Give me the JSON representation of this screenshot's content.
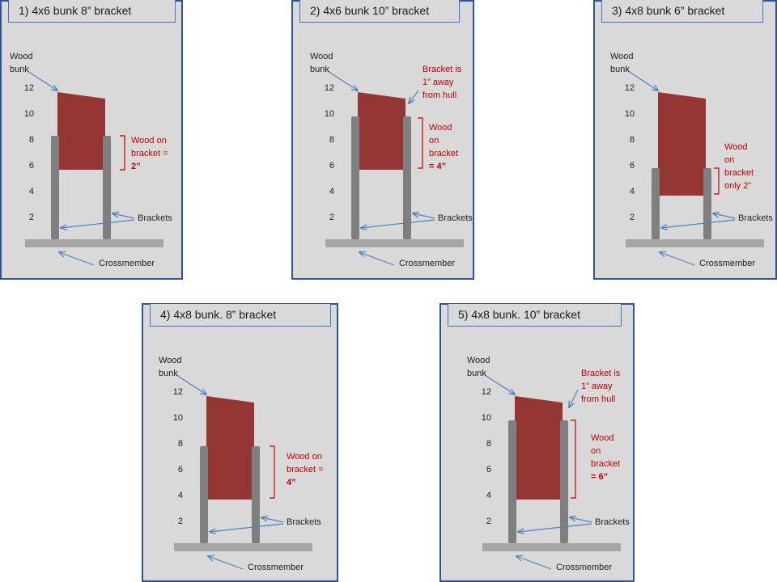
{
  "panels": [
    {
      "title": "1) 4x6 bunk 8” bracket",
      "wood_label_1": "Wood",
      "wood_label_2": "bunk",
      "ticks": [
        "12",
        "10",
        "8",
        "6",
        "4",
        "2"
      ],
      "brackets_label": "Brackets",
      "crossmember_label": "Crossmember",
      "note_lines": [
        "Wood on",
        "bracket =",
        "2”"
      ],
      "note_bold_last": true,
      "gap_note_lines": []
    },
    {
      "title": "2) 4x6 bunk 10” bracket",
      "wood_label_1": "Wood",
      "wood_label_2": "bunk",
      "ticks": [
        "12",
        "10",
        "8",
        "6",
        "4",
        "2"
      ],
      "brackets_label": "Brackets",
      "crossmember_label": "Crossmember",
      "note_lines": [
        "Wood",
        "on",
        "bracket",
        "= 4”"
      ],
      "note_bold_last": true,
      "gap_note_lines": [
        "Bracket is",
        "1” away",
        "from hull"
      ]
    },
    {
      "title": "3) 4x8 bunk 6” bracket",
      "wood_label_1": "Wood",
      "wood_label_2": "bunk",
      "ticks": [
        "12",
        "10",
        "8",
        "6",
        "4",
        "2"
      ],
      "brackets_label": "Brackets",
      "crossmember_label": "Crossmember",
      "note_lines": [
        "Wood",
        "on",
        "bracket",
        "only 2”"
      ],
      "note_bold_last": false,
      "gap_note_lines": []
    },
    {
      "title": "4) 4x8 bunk. 8” bracket",
      "wood_label_1": "Wood",
      "wood_label_2": "bunk",
      "ticks": [
        "12",
        "10",
        "8",
        "6",
        "4",
        "2"
      ],
      "brackets_label": "Brackets",
      "crossmember_label": "Crossmember",
      "note_lines": [
        "Wood on",
        "bracket =",
        "4”"
      ],
      "note_bold_last": true,
      "gap_note_lines": []
    },
    {
      "title": "5) 4x8 bunk. 10” bracket",
      "wood_label_1": "Wood",
      "wood_label_2": "bunk",
      "ticks": [
        "12",
        "10",
        "8",
        "6",
        "4",
        "2"
      ],
      "brackets_label": "Brackets",
      "crossmember_label": "Crossmember",
      "note_lines": [
        "Wood",
        "on",
        "bracket",
        "= 6”"
      ],
      "note_bold_last": true,
      "gap_note_lines": [
        "Bracket is",
        "1” away",
        "from hull"
      ]
    }
  ],
  "colors": {
    "panel_bg": "#d9d9d9",
    "border": "#2f5496",
    "bunk": "#943634",
    "bracket": "#7f7f7f",
    "crossmember": "#a6a6a6",
    "arrow": "#4f81bd",
    "note": "#c00000"
  }
}
